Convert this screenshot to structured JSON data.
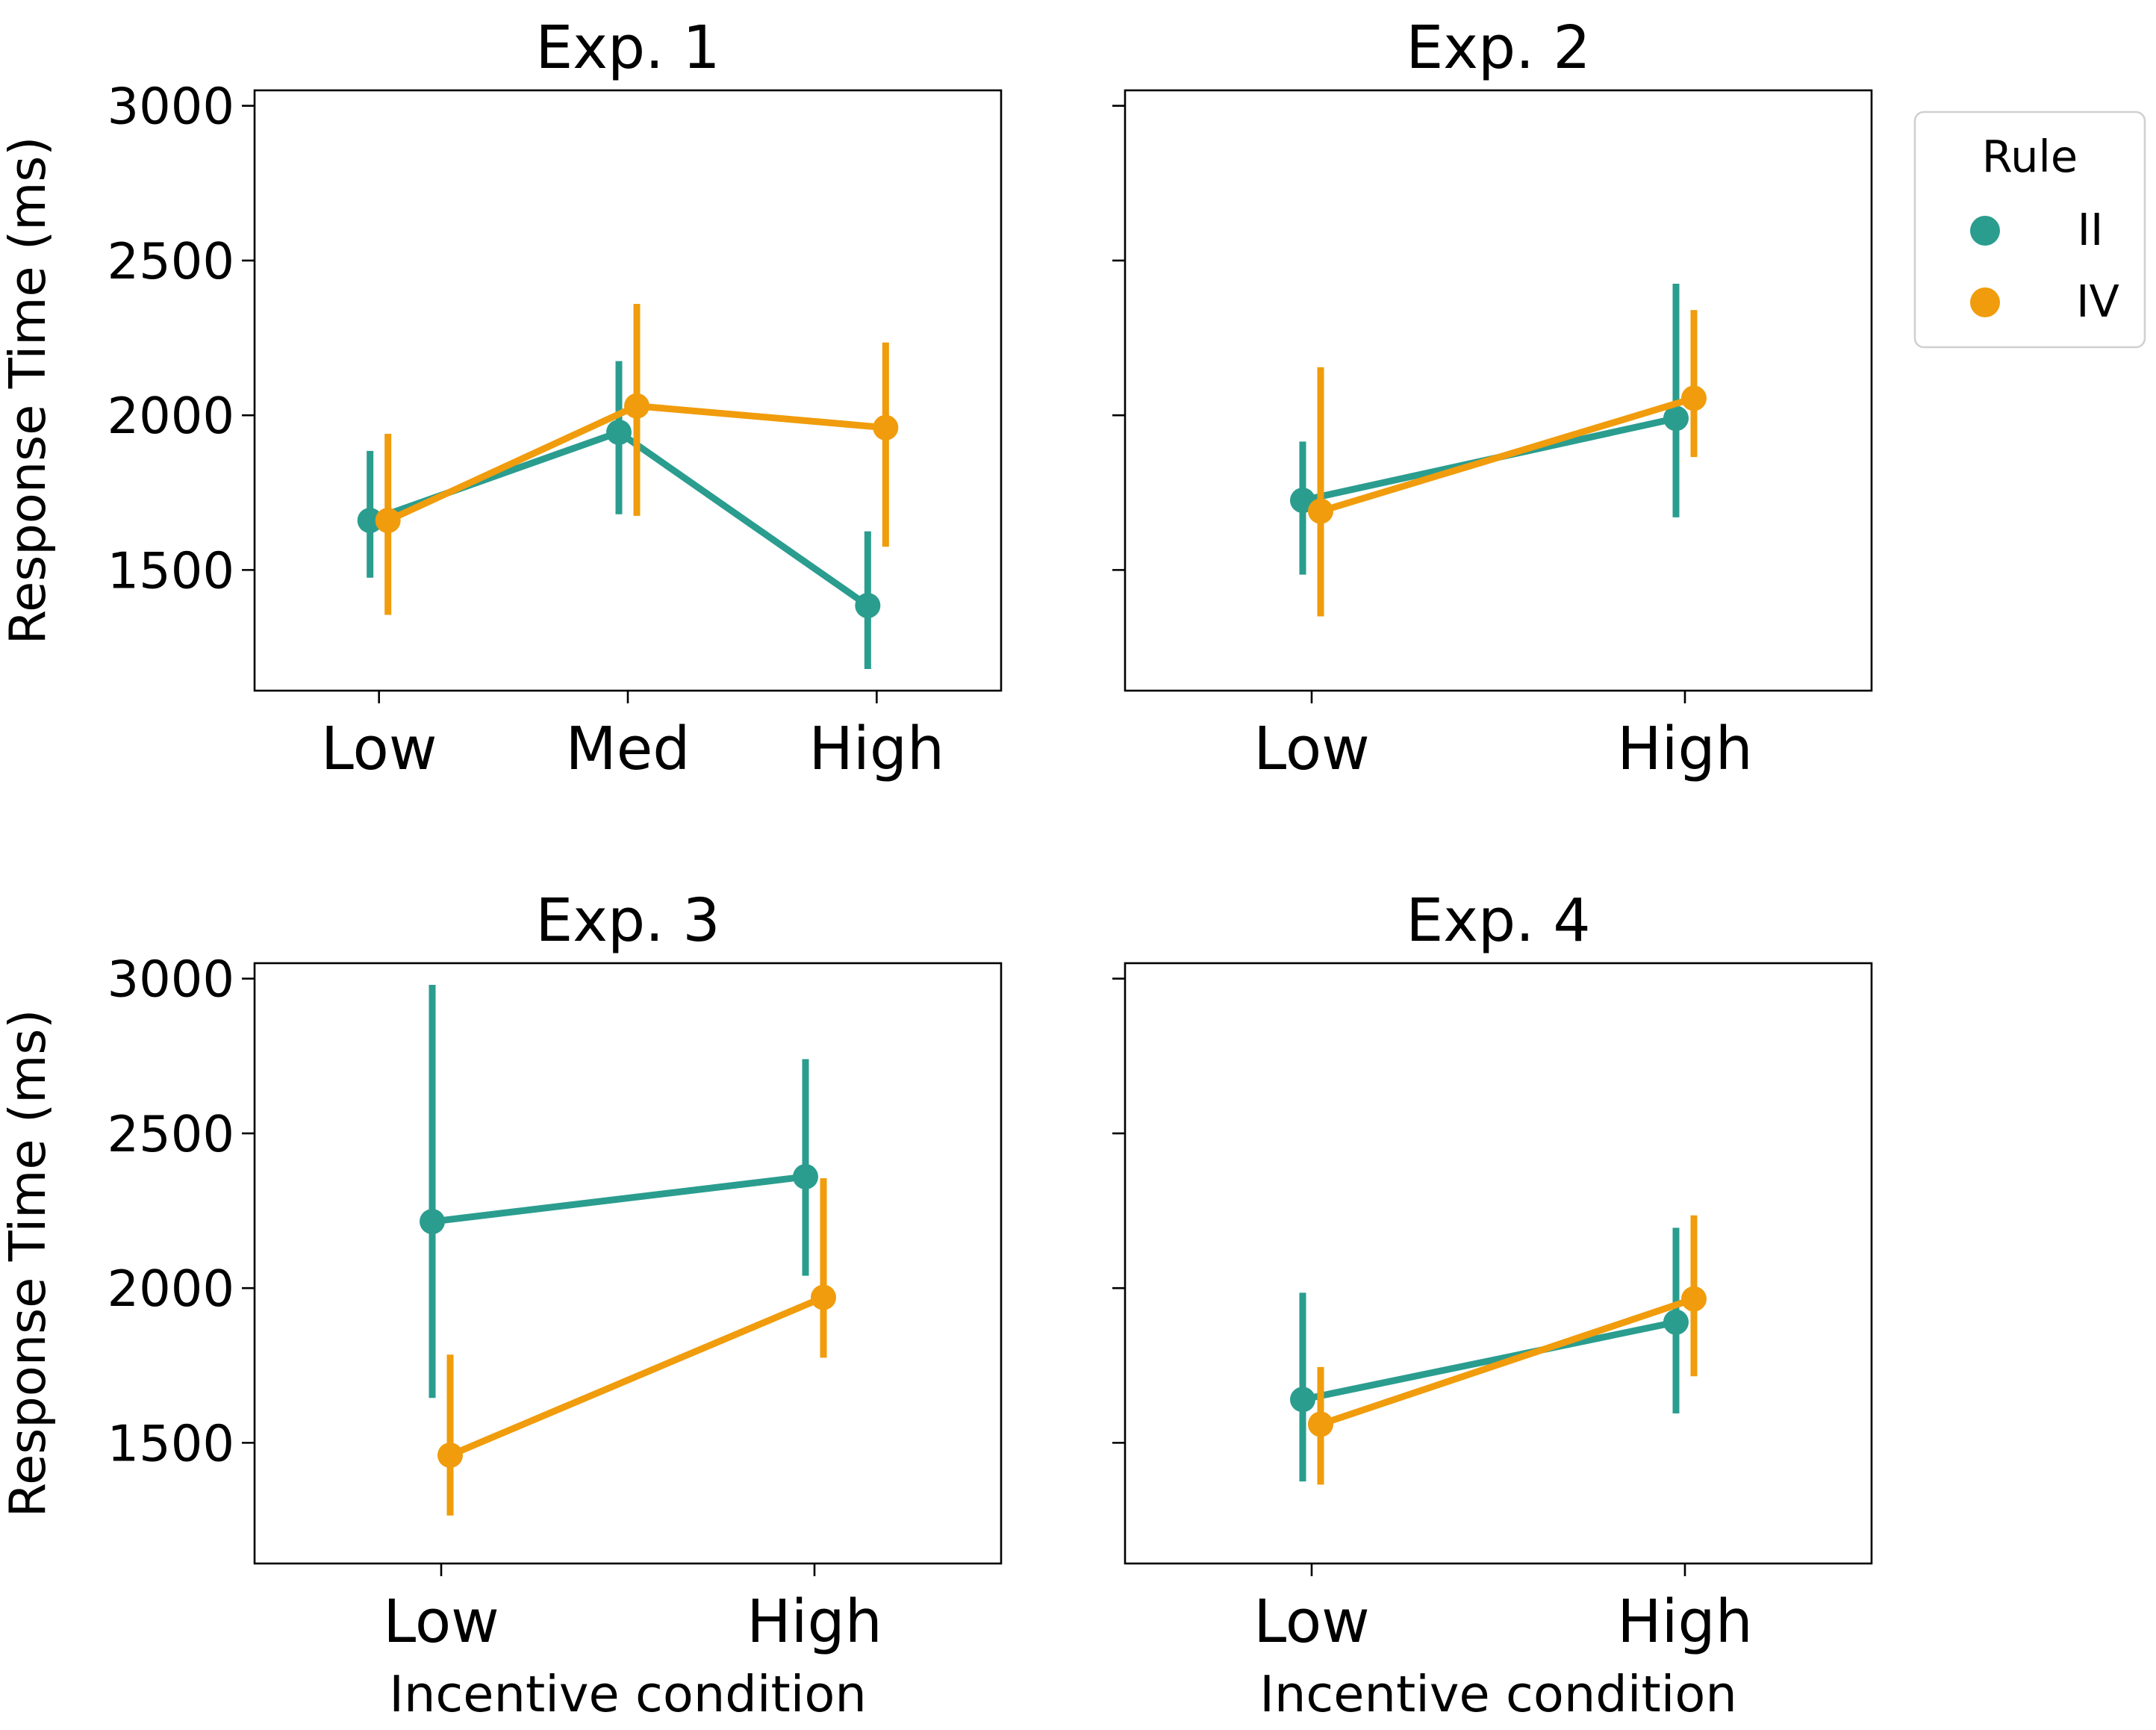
{
  "chart_data": [
    {
      "type": "line",
      "title": "Exp. 1",
      "categories": [
        "Low",
        "Med",
        "High"
      ],
      "ylabel": "Response Time (ms)",
      "xlabel": "",
      "ylim": [
        1110,
        3050
      ],
      "yticks": [
        1500,
        2000,
        2500,
        3000
      ],
      "show_yticklabels": true,
      "series": [
        {
          "name": "II",
          "color": "#2a9d8f",
          "values": [
            1660,
            1945,
            1385
          ],
          "ci_low": [
            1475,
            1680,
            1180
          ],
          "ci_high": [
            1885,
            2175,
            1625
          ]
        },
        {
          "name": "IV",
          "color": "#f09c0c",
          "values": [
            1660,
            2030,
            1960
          ],
          "ci_low": [
            1355,
            1675,
            1575
          ],
          "ci_high": [
            1940,
            2360,
            2235
          ]
        }
      ]
    },
    {
      "type": "line",
      "title": "Exp. 2",
      "categories": [
        "Low",
        "High"
      ],
      "ylabel": "",
      "xlabel": "",
      "ylim": [
        1110,
        3050
      ],
      "yticks": [
        1500,
        2000,
        2500,
        3000
      ],
      "show_yticklabels": false,
      "series": [
        {
          "name": "II",
          "color": "#2a9d8f",
          "values": [
            1725,
            1990
          ],
          "ci_low": [
            1485,
            1670
          ],
          "ci_high": [
            1915,
            2425
          ]
        },
        {
          "name": "IV",
          "color": "#f09c0c",
          "values": [
            1690,
            2055
          ],
          "ci_low": [
            1350,
            1865
          ],
          "ci_high": [
            2155,
            2340
          ]
        }
      ]
    },
    {
      "type": "line",
      "title": "Exp. 3",
      "categories": [
        "Low",
        "High"
      ],
      "ylabel": "Response Time (ms)",
      "xlabel": "Incentive condition",
      "ylim": [
        1110,
        3050
      ],
      "yticks": [
        1500,
        2000,
        2500,
        3000
      ],
      "show_yticklabels": true,
      "series": [
        {
          "name": "II",
          "color": "#2a9d8f",
          "values": [
            2215,
            2360
          ],
          "ci_low": [
            1645,
            2040
          ],
          "ci_high": [
            2980,
            2740
          ]
        },
        {
          "name": "IV",
          "color": "#f09c0c",
          "values": [
            1460,
            1970
          ],
          "ci_low": [
            1265,
            1775
          ],
          "ci_high": [
            1785,
            2355
          ]
        }
      ]
    },
    {
      "type": "line",
      "title": "Exp. 4",
      "categories": [
        "Low",
        "High"
      ],
      "ylabel": "",
      "xlabel": "Incentive condition",
      "ylim": [
        1110,
        3050
      ],
      "yticks": [
        1500,
        2000,
        2500,
        3000
      ],
      "show_yticklabels": false,
      "series": [
        {
          "name": "II",
          "color": "#2a9d8f",
          "values": [
            1640,
            1890
          ],
          "ci_low": [
            1375,
            1595
          ],
          "ci_high": [
            1985,
            2195
          ]
        },
        {
          "name": "IV",
          "color": "#f09c0c",
          "values": [
            1560,
            1965
          ],
          "ci_low": [
            1365,
            1715
          ],
          "ci_high": [
            1745,
            2235
          ]
        }
      ]
    }
  ],
  "legend": {
    "title": "Rule",
    "placement": "outside-right",
    "entries": [
      {
        "label": "II",
        "color": "#2a9d8f"
      },
      {
        "label": "IV",
        "color": "#f09c0c"
      }
    ]
  }
}
